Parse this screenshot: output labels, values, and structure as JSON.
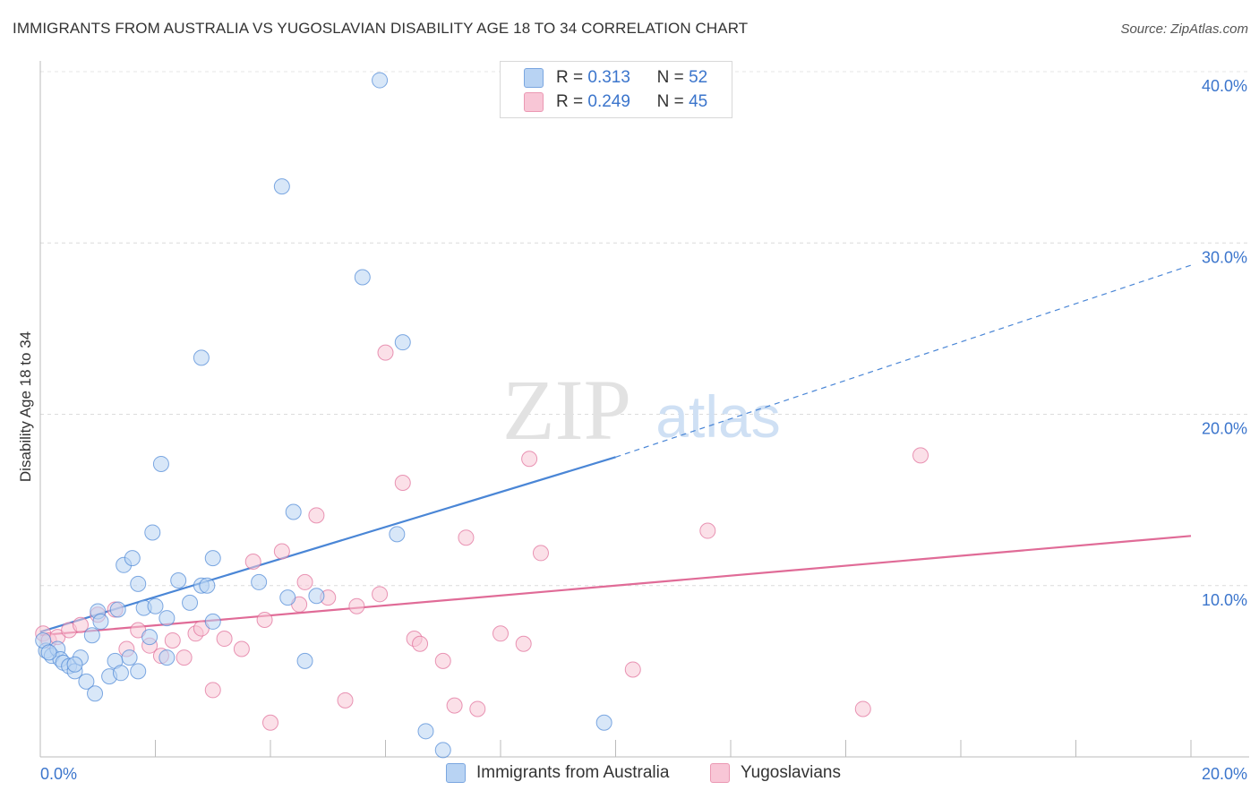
{
  "title": "IMMIGRANTS FROM AUSTRALIA VS YUGOSLAVIAN DISABILITY AGE 18 TO 34 CORRELATION CHART",
  "source": "Source: ZipAtlas.com",
  "watermark": {
    "zip": "ZIP",
    "atlas": "atlas"
  },
  "legend": {
    "r_label": "R =",
    "n_label": "N =",
    "series": [
      {
        "r": "0.313",
        "n": "52",
        "color": "#a8c8f0"
      },
      {
        "r": "0.249",
        "n": "45",
        "color": "#f5b6c8"
      }
    ]
  },
  "chart_data": {
    "type": "scatter",
    "title": "IMMIGRANTS FROM AUSTRALIA VS YUGOSLAVIAN DISABILITY AGE 18 TO 34 CORRELATION CHART",
    "xlabel": "",
    "ylabel": "Disability Age 18 to 34",
    "xlim": [
      0,
      20
    ],
    "ylim": [
      0,
      40
    ],
    "x_tick_labels": [
      "0.0%",
      "20.0%"
    ],
    "y_tick_labels": [
      "10.0%",
      "20.0%",
      "30.0%",
      "40.0%"
    ],
    "y_ticks": [
      10,
      20,
      30,
      40
    ],
    "grid": true,
    "legend_position": "top-center",
    "series": [
      {
        "name": "Immigrants from Australia",
        "color": "#4a86d6",
        "fill": "#b8d3f3",
        "trend": {
          "x0": 0,
          "y0": 7.3,
          "x1": 10,
          "y1": 17.5,
          "dashed_to_x": 20,
          "dashed_to_y": 28.7
        },
        "points": [
          [
            0.1,
            6.2
          ],
          [
            0.2,
            5.9
          ],
          [
            0.3,
            6.3
          ],
          [
            0.35,
            5.7
          ],
          [
            0.4,
            5.5
          ],
          [
            0.5,
            5.3
          ],
          [
            0.6,
            5.0
          ],
          [
            0.7,
            5.8
          ],
          [
            0.8,
            4.4
          ],
          [
            0.9,
            7.1
          ],
          [
            0.95,
            3.7
          ],
          [
            1.0,
            8.5
          ],
          [
            1.05,
            7.9
          ],
          [
            1.2,
            4.7
          ],
          [
            1.3,
            5.6
          ],
          [
            1.35,
            8.6
          ],
          [
            1.4,
            4.9
          ],
          [
            1.45,
            11.2
          ],
          [
            1.55,
            5.8
          ],
          [
            1.6,
            11.6
          ],
          [
            1.7,
            10.1
          ],
          [
            1.7,
            5.0
          ],
          [
            1.8,
            8.7
          ],
          [
            1.9,
            7.0
          ],
          [
            1.95,
            13.1
          ],
          [
            2.0,
            8.8
          ],
          [
            2.1,
            17.1
          ],
          [
            2.2,
            8.1
          ],
          [
            2.2,
            5.8
          ],
          [
            2.4,
            10.3
          ],
          [
            2.6,
            9.0
          ],
          [
            2.8,
            10.0
          ],
          [
            2.8,
            23.3
          ],
          [
            2.9,
            10.0
          ],
          [
            3.0,
            11.6
          ],
          [
            3.0,
            7.9
          ],
          [
            3.8,
            10.2
          ],
          [
            4.2,
            33.3
          ],
          [
            4.3,
            9.3
          ],
          [
            4.4,
            14.3
          ],
          [
            4.6,
            5.6
          ],
          [
            4.8,
            9.4
          ],
          [
            5.6,
            28.0
          ],
          [
            5.9,
            39.5
          ],
          [
            6.2,
            13.0
          ],
          [
            6.3,
            24.2
          ],
          [
            6.7,
            1.5
          ],
          [
            7.0,
            0.4
          ],
          [
            9.8,
            2.0
          ],
          [
            0.05,
            6.8
          ],
          [
            0.15,
            6.1
          ],
          [
            0.6,
            5.4
          ]
        ]
      },
      {
        "name": "Yugoslavians",
        "color": "#e06b97",
        "fill": "#f8c6d6",
        "trend": {
          "x0": 0,
          "y0": 7.1,
          "x1": 20,
          "y1": 12.9
        },
        "points": [
          [
            0.05,
            7.2
          ],
          [
            0.15,
            6.8
          ],
          [
            0.3,
            7.0
          ],
          [
            0.5,
            7.4
          ],
          [
            0.7,
            7.7
          ],
          [
            1.0,
            8.3
          ],
          [
            1.3,
            8.6
          ],
          [
            1.5,
            6.3
          ],
          [
            1.7,
            7.4
          ],
          [
            1.9,
            6.5
          ],
          [
            2.1,
            5.9
          ],
          [
            2.3,
            6.8
          ],
          [
            2.5,
            5.8
          ],
          [
            2.7,
            7.2
          ],
          [
            2.8,
            7.5
          ],
          [
            3.0,
            3.9
          ],
          [
            3.2,
            6.9
          ],
          [
            3.5,
            6.3
          ],
          [
            3.7,
            11.4
          ],
          [
            3.9,
            8.0
          ],
          [
            4.0,
            2.0
          ],
          [
            4.2,
            12.0
          ],
          [
            4.5,
            8.9
          ],
          [
            4.6,
            10.2
          ],
          [
            4.8,
            14.1
          ],
          [
            5.0,
            9.3
          ],
          [
            5.3,
            3.3
          ],
          [
            5.5,
            8.8
          ],
          [
            5.9,
            9.5
          ],
          [
            6.0,
            23.6
          ],
          [
            6.3,
            16.0
          ],
          [
            6.5,
            6.9
          ],
          [
            6.6,
            6.6
          ],
          [
            7.0,
            5.6
          ],
          [
            7.2,
            3.0
          ],
          [
            7.4,
            12.8
          ],
          [
            7.6,
            2.8
          ],
          [
            8.0,
            7.2
          ],
          [
            8.4,
            6.6
          ],
          [
            8.5,
            17.4
          ],
          [
            8.7,
            11.9
          ],
          [
            10.3,
            5.1
          ],
          [
            11.6,
            13.2
          ],
          [
            14.3,
            2.8
          ],
          [
            15.3,
            17.6
          ]
        ]
      }
    ]
  }
}
